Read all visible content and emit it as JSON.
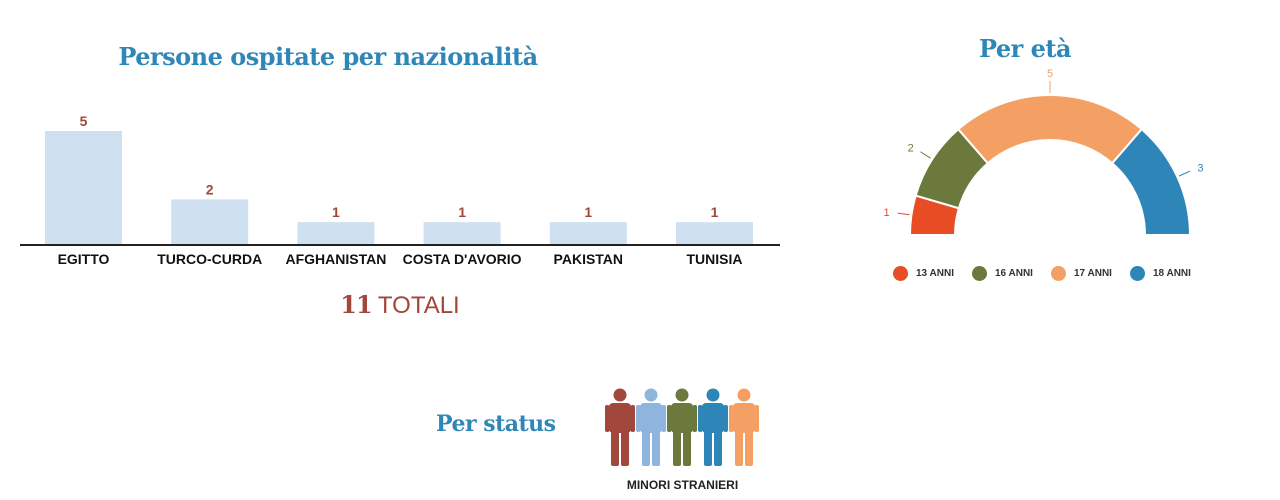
{
  "nationality": {
    "title": "Persone ospitate per nazionalità",
    "total_number": "11",
    "total_word": "TOTALI"
  },
  "age": {
    "title": "Per età"
  },
  "status": {
    "title": "Per status",
    "label": "MINORI STRANIERI",
    "person_colors": [
      "#a1473c",
      "#8fb4de",
      "#6b7a3c",
      "#2e86b8",
      "#f4a064"
    ]
  },
  "chart_data": [
    {
      "type": "bar",
      "title": "Persone ospitate per nazionalità",
      "categories": [
        "EGITTO",
        "TURCO-CURDA",
        "AFGHANISTAN",
        "COSTA D'AVORIO",
        "PAKISTAN",
        "TUNISIA"
      ],
      "values": [
        5,
        2,
        1,
        1,
        1,
        1
      ],
      "value_labels": [
        "5",
        "2",
        "1",
        "1",
        "1",
        "1"
      ],
      "ylim": [
        0,
        5
      ],
      "bar_color": "#cfe0f1",
      "label_color": "#a1473c",
      "grid": false
    },
    {
      "type": "pie",
      "variant": "half-donut",
      "title": "Per età",
      "categories": [
        "13 ANNI",
        "16 ANNI",
        "17 ANNI",
        "18 ANNI"
      ],
      "values": [
        1,
        2,
        5,
        3
      ],
      "value_labels": [
        "1",
        "2",
        "5",
        "3"
      ],
      "colors": [
        "#e84c25",
        "#6b7a3c",
        "#f4a064",
        "#2e86b8"
      ],
      "legend": "bottom"
    }
  ]
}
